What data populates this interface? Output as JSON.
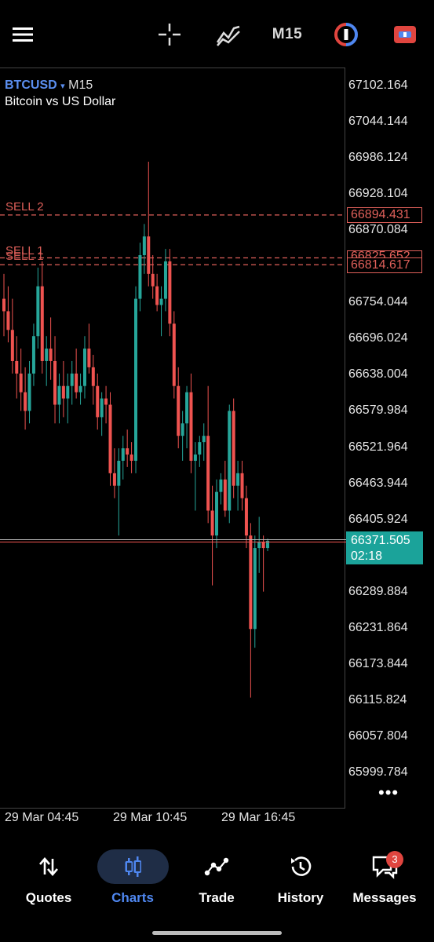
{
  "toolbar": {
    "menu_icon": "hamburger-menu-icon",
    "crosshair_icon": "crosshair-icon",
    "indicators_icon": "indicator-icon",
    "timeframe": "M15",
    "one_click_icon": "one-click-trading-icon",
    "chart_type_icon": "chart-type-icon"
  },
  "symbol": {
    "ticker": "BTCUSD",
    "arrow": "▾",
    "timeframe": "M15",
    "description": "Bitcoin vs US Dollar"
  },
  "levels": {
    "sell2_label": "SELL 2",
    "sell1_label": "SELL 1",
    "sell2_price": "66894.431",
    "sell1_price_hidden": "66825.652",
    "sell1_price": "66814.617"
  },
  "price_axis": [
    "67102.164",
    "67044.144",
    "66986.124",
    "66928.104",
    "66870.084",
    "66754.044",
    "66696.024",
    "66638.004",
    "66579.984",
    "66521.964",
    "66463.944",
    "66405.924",
    "66289.884",
    "66231.864",
    "66173.844",
    "66115.824",
    "66057.804",
    "65999.784"
  ],
  "current": {
    "price": "66371.505",
    "countdown": "02:18"
  },
  "time_axis": [
    "29 Mar 04:45",
    "29 Mar 10:45",
    "29 Mar 16:45"
  ],
  "more_label": "•••",
  "nav": {
    "quotes": "Quotes",
    "charts": "Charts",
    "trade": "Trade",
    "history": "History",
    "messages": "Messages",
    "messages_badge": "3"
  },
  "colors": {
    "bull": "#26a69a",
    "bear": "#ef5350",
    "level": "#e0605a",
    "accent": "#4f87f0"
  },
  "chart_data": {
    "type": "candlestick",
    "symbol": "BTCUSD",
    "timeframe": "M15",
    "ylim": [
      65999.784,
      67102.164
    ],
    "candles": [
      {
        "o": 66760,
        "h": 66800,
        "l": 66700,
        "c": 66740
      },
      {
        "o": 66740,
        "h": 66780,
        "l": 66690,
        "c": 66710
      },
      {
        "o": 66710,
        "h": 66760,
        "l": 66640,
        "c": 66660
      },
      {
        "o": 66660,
        "h": 66700,
        "l": 66600,
        "c": 66640
      },
      {
        "o": 66640,
        "h": 66680,
        "l": 66580,
        "c": 66610
      },
      {
        "o": 66610,
        "h": 66650,
        "l": 66550,
        "c": 66580
      },
      {
        "o": 66580,
        "h": 66660,
        "l": 66560,
        "c": 66640
      },
      {
        "o": 66640,
        "h": 66720,
        "l": 66620,
        "c": 66700
      },
      {
        "o": 66700,
        "h": 66810,
        "l": 66680,
        "c": 66780
      },
      {
        "o": 66780,
        "h": 66820,
        "l": 66640,
        "c": 66660
      },
      {
        "o": 66660,
        "h": 66700,
        "l": 66620,
        "c": 66680
      },
      {
        "o": 66680,
        "h": 66730,
        "l": 66630,
        "c": 66660
      },
      {
        "o": 66660,
        "h": 66700,
        "l": 66560,
        "c": 66590
      },
      {
        "o": 66590,
        "h": 66640,
        "l": 66560,
        "c": 66620
      },
      {
        "o": 66620,
        "h": 66660,
        "l": 66570,
        "c": 66600
      },
      {
        "o": 66600,
        "h": 66640,
        "l": 66560,
        "c": 66620
      },
      {
        "o": 66620,
        "h": 66660,
        "l": 66590,
        "c": 66640
      },
      {
        "o": 66640,
        "h": 66680,
        "l": 66600,
        "c": 66610
      },
      {
        "o": 66610,
        "h": 66640,
        "l": 66590,
        "c": 66620
      },
      {
        "o": 66620,
        "h": 66700,
        "l": 66600,
        "c": 66680
      },
      {
        "o": 66680,
        "h": 66720,
        "l": 66640,
        "c": 66650
      },
      {
        "o": 66650,
        "h": 66670,
        "l": 66590,
        "c": 66620
      },
      {
        "o": 66620,
        "h": 66640,
        "l": 66550,
        "c": 66570
      },
      {
        "o": 66570,
        "h": 66610,
        "l": 66540,
        "c": 66600
      },
      {
        "o": 66600,
        "h": 66620,
        "l": 66560,
        "c": 66590
      },
      {
        "o": 66590,
        "h": 66610,
        "l": 66460,
        "c": 66480
      },
      {
        "o": 66480,
        "h": 66520,
        "l": 66440,
        "c": 66460
      },
      {
        "o": 66460,
        "h": 66520,
        "l": 66380,
        "c": 66500
      },
      {
        "o": 66500,
        "h": 66540,
        "l": 66470,
        "c": 66520
      },
      {
        "o": 66520,
        "h": 66550,
        "l": 66490,
        "c": 66510
      },
      {
        "o": 66510,
        "h": 66530,
        "l": 66480,
        "c": 66500
      },
      {
        "o": 66500,
        "h": 66780,
        "l": 66480,
        "c": 66760
      },
      {
        "o": 66760,
        "h": 66850,
        "l": 66740,
        "c": 66830
      },
      {
        "o": 66830,
        "h": 66880,
        "l": 66800,
        "c": 66860
      },
      {
        "o": 66860,
        "h": 66980,
        "l": 66780,
        "c": 66800
      },
      {
        "o": 66800,
        "h": 66830,
        "l": 66760,
        "c": 66780
      },
      {
        "o": 66780,
        "h": 66800,
        "l": 66740,
        "c": 66750
      },
      {
        "o": 66750,
        "h": 66780,
        "l": 66700,
        "c": 66760
      },
      {
        "o": 66760,
        "h": 66840,
        "l": 66740,
        "c": 66820
      },
      {
        "o": 66820,
        "h": 66840,
        "l": 66700,
        "c": 66720
      },
      {
        "o": 66720,
        "h": 66740,
        "l": 66600,
        "c": 66620
      },
      {
        "o": 66620,
        "h": 66650,
        "l": 66520,
        "c": 66540
      },
      {
        "o": 66540,
        "h": 66580,
        "l": 66500,
        "c": 66560
      },
      {
        "o": 66560,
        "h": 66620,
        "l": 66520,
        "c": 66610
      },
      {
        "o": 66610,
        "h": 66640,
        "l": 66480,
        "c": 66500
      },
      {
        "o": 66500,
        "h": 66530,
        "l": 66420,
        "c": 66510
      },
      {
        "o": 66510,
        "h": 66540,
        "l": 66490,
        "c": 66530
      },
      {
        "o": 66530,
        "h": 66560,
        "l": 66500,
        "c": 66540
      },
      {
        "o": 66540,
        "h": 66620,
        "l": 66400,
        "c": 66420
      },
      {
        "o": 66420,
        "h": 66460,
        "l": 66300,
        "c": 66380
      },
      {
        "o": 66380,
        "h": 66470,
        "l": 66360,
        "c": 66450
      },
      {
        "o": 66450,
        "h": 66480,
        "l": 66430,
        "c": 66470
      },
      {
        "o": 66470,
        "h": 66500,
        "l": 66410,
        "c": 66420
      },
      {
        "o": 66420,
        "h": 66590,
        "l": 66400,
        "c": 66580
      },
      {
        "o": 66580,
        "h": 66600,
        "l": 66440,
        "c": 66460
      },
      {
        "o": 66460,
        "h": 66500,
        "l": 66420,
        "c": 66480
      },
      {
        "o": 66480,
        "h": 66500,
        "l": 66420,
        "c": 66440
      },
      {
        "o": 66440,
        "h": 66460,
        "l": 66360,
        "c": 66380
      },
      {
        "o": 66380,
        "h": 66400,
        "l": 66120,
        "c": 66230
      },
      {
        "o": 66230,
        "h": 66380,
        "l": 66200,
        "c": 66360
      },
      {
        "o": 66360,
        "h": 66410,
        "l": 66320,
        "c": 66370
      },
      {
        "o": 66370,
        "h": 66380,
        "l": 66290,
        "c": 66360
      },
      {
        "o": 66360,
        "h": 66375,
        "l": 66355,
        "c": 66371.505
      }
    ]
  }
}
